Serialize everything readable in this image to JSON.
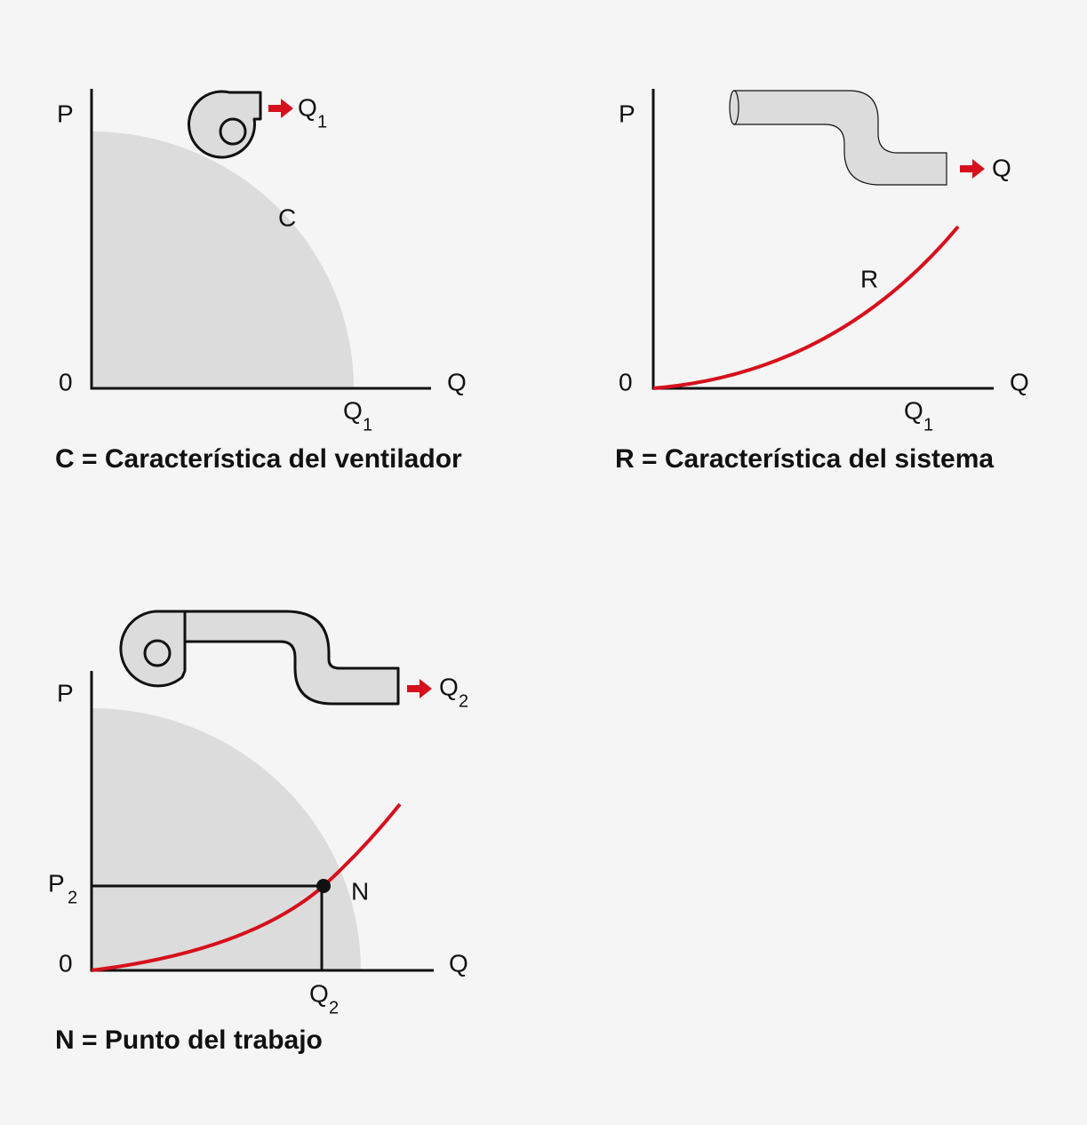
{
  "panels": [
    {
      "axis_y": "P",
      "origin": "0",
      "axis_x": "Q",
      "flow": {
        "text": "Q",
        "sub": "1"
      },
      "curve": "C",
      "x_mark": {
        "text": "Q",
        "sub": "1"
      },
      "caption": "C = Característica del ventilador"
    },
    {
      "axis_y": "P",
      "origin": "0",
      "axis_x": "Q",
      "flow": {
        "text": "Q"
      },
      "curve": "R",
      "x_mark": {
        "text": "Q",
        "sub": "1"
      },
      "caption": "R = Característica del sistema"
    },
    {
      "axis_y": "P",
      "origin": "0",
      "axis_x": "Q",
      "flow": {
        "text": "Q",
        "sub": "2"
      },
      "curve": "N",
      "x_mark": {
        "text": "Q",
        "sub": "2"
      },
      "y_mark": {
        "text": "P",
        "sub": "2"
      },
      "caption": "N = Punto del trabajo"
    }
  ]
}
